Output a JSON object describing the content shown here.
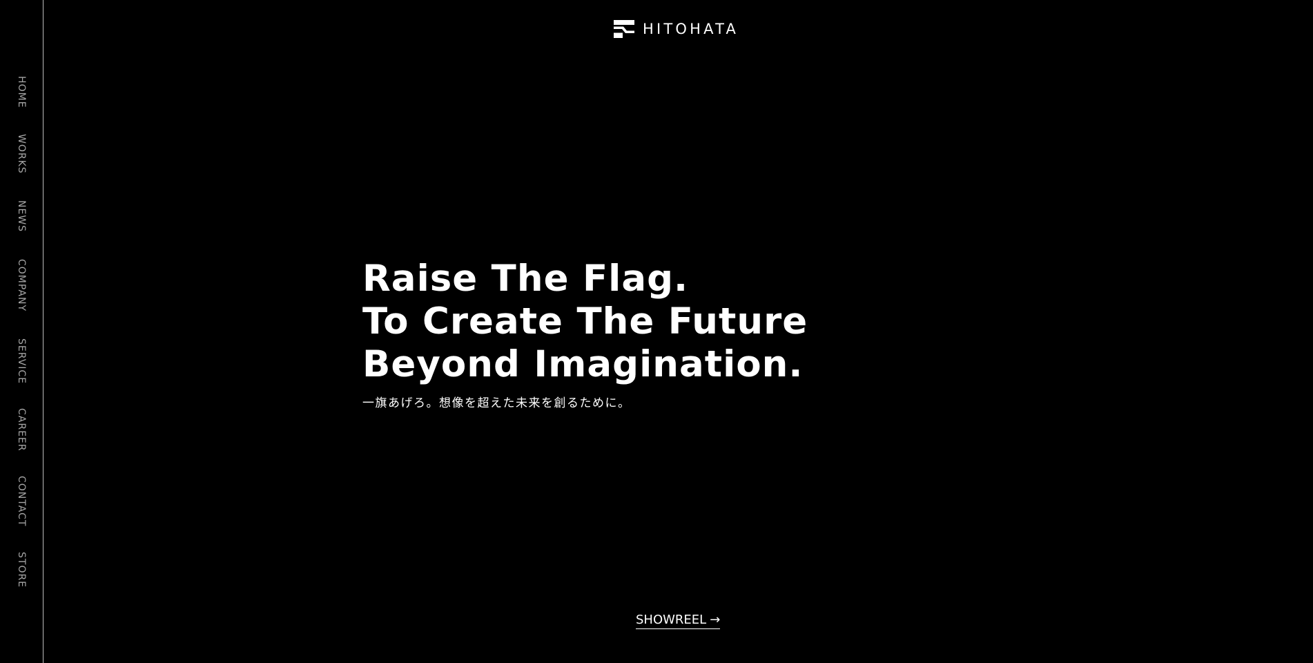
{
  "brand": {
    "name": "HITOHATA",
    "logo_icon": "flag-logo-icon",
    "colors": {
      "background": "#000000",
      "text": "#ffffff",
      "nav_text": "#a6a6a6",
      "divider": "#bfbfbf"
    }
  },
  "sidebar": {
    "items": [
      {
        "label": "HOME"
      },
      {
        "label": "WORKS"
      },
      {
        "label": "NEWS"
      },
      {
        "label": "COMPANY"
      },
      {
        "label": "SERVICE"
      },
      {
        "label": "CAREER"
      },
      {
        "label": "CONTACT"
      },
      {
        "label": "STORE"
      }
    ]
  },
  "hero": {
    "lines": [
      "Raise The Flag.",
      "To Create The Future",
      "Beyond Imagination."
    ],
    "subtitle": "一旗あげろ。想像を超えた未来を創るために。"
  },
  "showreel": {
    "label": "SHOWREEL",
    "arrow": "→",
    "icon": "arrow-right-icon"
  }
}
